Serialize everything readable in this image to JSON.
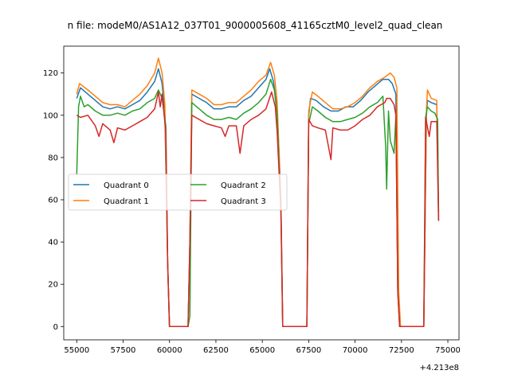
{
  "chart_data": {
    "type": "line",
    "title": "n file: modeM0/AS1A12_037T01_9000005608_41165cztM0_level2_quad_clean",
    "xlabel": "",
    "ylabel": "",
    "x_offset_label": "+4.213e8",
    "xlim": [
      54300,
      75600
    ],
    "ylim": [
      -6.3,
      132.7
    ],
    "xticks": [
      55000,
      57500,
      60000,
      62500,
      65000,
      67500,
      70000,
      72500,
      75000
    ],
    "yticks": [
      0,
      20,
      40,
      60,
      80,
      100,
      120
    ],
    "grid": false,
    "legend_position": "center-left",
    "legend_columns": 2,
    "series": [
      {
        "name": "Quadrant 0",
        "color": "#1f77b4",
        "points": [
          [
            55000,
            108
          ],
          [
            55200,
            113
          ],
          [
            55600,
            110
          ],
          [
            56000,
            107
          ],
          [
            56400,
            104
          ],
          [
            56800,
            103
          ],
          [
            57200,
            104
          ],
          [
            57600,
            103
          ],
          [
            58000,
            105
          ],
          [
            58400,
            107
          ],
          [
            58800,
            111
          ],
          [
            59200,
            116
          ],
          [
            59400,
            122
          ],
          [
            59600,
            115
          ],
          [
            59750,
            100
          ],
          [
            59900,
            30
          ],
          [
            60000,
            0
          ],
          [
            61000,
            0
          ],
          [
            61100,
            40
          ],
          [
            61200,
            110
          ],
          [
            61600,
            108
          ],
          [
            62000,
            106
          ],
          [
            62400,
            103
          ],
          [
            62800,
            103
          ],
          [
            63200,
            104
          ],
          [
            63600,
            104
          ],
          [
            64000,
            107
          ],
          [
            64400,
            109
          ],
          [
            64800,
            113
          ],
          [
            65200,
            117
          ],
          [
            65400,
            122
          ],
          [
            65600,
            116
          ],
          [
            65800,
            103
          ],
          [
            66000,
            60
          ],
          [
            66100,
            0
          ],
          [
            67400,
            0
          ],
          [
            67500,
            100
          ],
          [
            67600,
            108
          ],
          [
            67900,
            107
          ],
          [
            68300,
            104
          ],
          [
            68700,
            102
          ],
          [
            69100,
            102
          ],
          [
            69500,
            104
          ],
          [
            69900,
            104
          ],
          [
            70300,
            107
          ],
          [
            70700,
            111
          ],
          [
            71100,
            114
          ],
          [
            71500,
            117
          ],
          [
            71800,
            117
          ],
          [
            72000,
            115
          ],
          [
            72200,
            110
          ],
          [
            72300,
            17
          ],
          [
            72400,
            0
          ],
          [
            73700,
            0
          ],
          [
            73850,
            100
          ],
          [
            73900,
            107
          ],
          [
            74100,
            106
          ],
          [
            74400,
            105
          ],
          [
            74500,
            50
          ]
        ]
      },
      {
        "name": "Quadrant 1",
        "color": "#ff7f0e",
        "points": [
          [
            55000,
            110
          ],
          [
            55150,
            115
          ],
          [
            55600,
            112
          ],
          [
            56000,
            109
          ],
          [
            56400,
            106
          ],
          [
            56800,
            105
          ],
          [
            57200,
            105
          ],
          [
            57600,
            104
          ],
          [
            58000,
            107
          ],
          [
            58400,
            110
          ],
          [
            58800,
            114
          ],
          [
            59200,
            120
          ],
          [
            59400,
            127
          ],
          [
            59600,
            120
          ],
          [
            59750,
            105
          ],
          [
            59900,
            30
          ],
          [
            60000,
            0
          ],
          [
            61000,
            0
          ],
          [
            61100,
            40
          ],
          [
            61200,
            112
          ],
          [
            61600,
            110
          ],
          [
            62000,
            108
          ],
          [
            62400,
            105
          ],
          [
            62800,
            105
          ],
          [
            63200,
            106
          ],
          [
            63600,
            106
          ],
          [
            64000,
            109
          ],
          [
            64400,
            112
          ],
          [
            64800,
            116
          ],
          [
            65200,
            119
          ],
          [
            65450,
            125
          ],
          [
            65650,
            119
          ],
          [
            65800,
            106
          ],
          [
            66000,
            60
          ],
          [
            66100,
            0
          ],
          [
            67400,
            0
          ],
          [
            67500,
            102
          ],
          [
            67700,
            111
          ],
          [
            68000,
            109
          ],
          [
            68400,
            106
          ],
          [
            68800,
            103
          ],
          [
            69200,
            103
          ],
          [
            69600,
            104
          ],
          [
            70000,
            106
          ],
          [
            70400,
            109
          ],
          [
            70800,
            113
          ],
          [
            71200,
            116
          ],
          [
            71600,
            118
          ],
          [
            71900,
            120
          ],
          [
            72100,
            118
          ],
          [
            72250,
            113
          ],
          [
            72350,
            17
          ],
          [
            72450,
            0
          ],
          [
            73700,
            0
          ],
          [
            73850,
            103
          ],
          [
            73900,
            112
          ],
          [
            74100,
            108
          ],
          [
            74400,
            107
          ],
          [
            74500,
            54
          ]
        ]
      },
      {
        "name": "Quadrant 2",
        "color": "#2ca02c",
        "points": [
          [
            55000,
            72
          ],
          [
            55100,
            104
          ],
          [
            55200,
            109
          ],
          [
            55400,
            104
          ],
          [
            55600,
            105
          ],
          [
            56000,
            102
          ],
          [
            56400,
            100
          ],
          [
            56800,
            100
          ],
          [
            57200,
            101
          ],
          [
            57600,
            100
          ],
          [
            58000,
            102
          ],
          [
            58400,
            103
          ],
          [
            58800,
            106
          ],
          [
            59200,
            108
          ],
          [
            59400,
            112
          ],
          [
            59600,
            108
          ],
          [
            59800,
            95
          ],
          [
            59900,
            30
          ],
          [
            60000,
            0
          ],
          [
            61000,
            0
          ],
          [
            61100,
            5
          ],
          [
            61200,
            106
          ],
          [
            61600,
            103
          ],
          [
            62000,
            100
          ],
          [
            62400,
            98
          ],
          [
            62800,
            98
          ],
          [
            63200,
            99
          ],
          [
            63600,
            98
          ],
          [
            64000,
            101
          ],
          [
            64400,
            103
          ],
          [
            64800,
            106
          ],
          [
            65200,
            110
          ],
          [
            65450,
            117
          ],
          [
            65650,
            112
          ],
          [
            65800,
            100
          ],
          [
            66000,
            55
          ],
          [
            66100,
            0
          ],
          [
            67400,
            0
          ],
          [
            67500,
            96
          ],
          [
            67700,
            104
          ],
          [
            68000,
            102
          ],
          [
            68400,
            99
          ],
          [
            68800,
            97
          ],
          [
            69200,
            97
          ],
          [
            69600,
            98
          ],
          [
            70000,
            99
          ],
          [
            70400,
            101
          ],
          [
            70800,
            104
          ],
          [
            71200,
            106
          ],
          [
            71500,
            109
          ],
          [
            71650,
            85
          ],
          [
            71700,
            65
          ],
          [
            71800,
            102
          ],
          [
            71900,
            88
          ],
          [
            72100,
            82
          ],
          [
            72200,
            100
          ],
          [
            72300,
            17
          ],
          [
            72400,
            0
          ],
          [
            73700,
            0
          ],
          [
            73800,
            99
          ],
          [
            73900,
            104
          ],
          [
            74100,
            102
          ],
          [
            74300,
            101
          ],
          [
            74450,
            98
          ],
          [
            74500,
            52
          ]
        ]
      },
      {
        "name": "Quadrant 3",
        "color": "#d62728",
        "points": [
          [
            55000,
            100
          ],
          [
            55200,
            99
          ],
          [
            55600,
            100
          ],
          [
            56000,
            95
          ],
          [
            56200,
            90
          ],
          [
            56400,
            96
          ],
          [
            56800,
            93
          ],
          [
            57000,
            87
          ],
          [
            57200,
            94
          ],
          [
            57600,
            93
          ],
          [
            58000,
            95
          ],
          [
            58400,
            97
          ],
          [
            58800,
            99
          ],
          [
            59200,
            103
          ],
          [
            59400,
            111
          ],
          [
            59500,
            104
          ],
          [
            59600,
            110
          ],
          [
            59800,
            92
          ],
          [
            59900,
            30
          ],
          [
            60000,
            0
          ],
          [
            61000,
            0
          ],
          [
            61100,
            40
          ],
          [
            61200,
            100
          ],
          [
            61600,
            98
          ],
          [
            62000,
            96
          ],
          [
            62400,
            95
          ],
          [
            62800,
            94
          ],
          [
            63000,
            90
          ],
          [
            63200,
            95
          ],
          [
            63600,
            95
          ],
          [
            63800,
            82
          ],
          [
            64000,
            95
          ],
          [
            64400,
            98
          ],
          [
            64800,
            100
          ],
          [
            65200,
            103
          ],
          [
            65500,
            111
          ],
          [
            65700,
            104
          ],
          [
            65800,
            92
          ],
          [
            66000,
            55
          ],
          [
            66100,
            0
          ],
          [
            67400,
            0
          ],
          [
            67500,
            98
          ],
          [
            67700,
            95
          ],
          [
            68000,
            94
          ],
          [
            68400,
            93
          ],
          [
            68700,
            79
          ],
          [
            68800,
            94
          ],
          [
            69200,
            93
          ],
          [
            69600,
            93
          ],
          [
            70000,
            95
          ],
          [
            70400,
            98
          ],
          [
            70800,
            100
          ],
          [
            71200,
            104
          ],
          [
            71600,
            106
          ],
          [
            71700,
            108
          ],
          [
            71900,
            108
          ],
          [
            72100,
            105
          ],
          [
            72200,
            100
          ],
          [
            72300,
            16
          ],
          [
            72400,
            0
          ],
          [
            73700,
            0
          ],
          [
            73750,
            40
          ],
          [
            73800,
            99
          ],
          [
            74000,
            90
          ],
          [
            74100,
            97
          ],
          [
            74400,
            97
          ],
          [
            74500,
            50
          ]
        ]
      }
    ]
  }
}
